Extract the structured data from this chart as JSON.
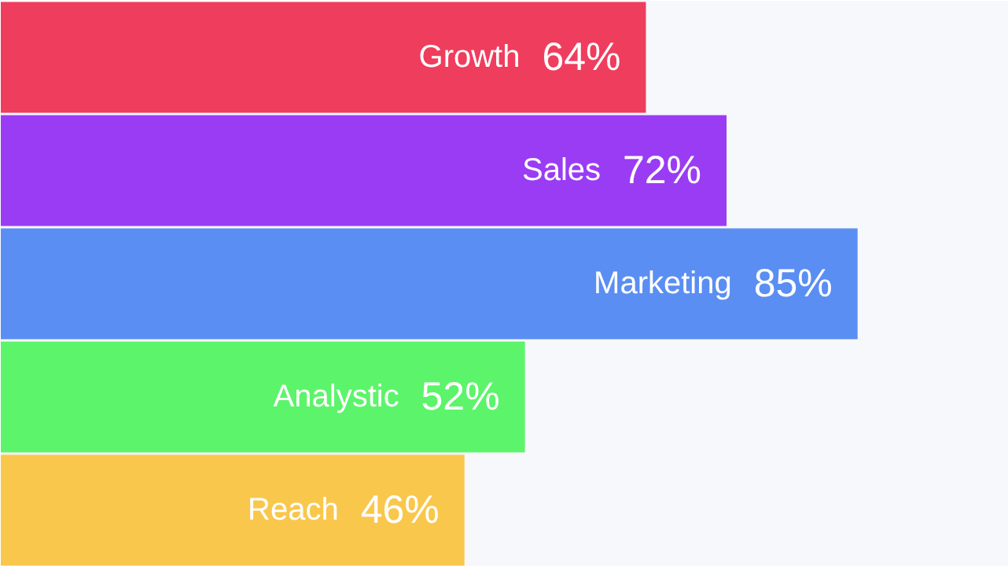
{
  "chart_data": {
    "type": "bar",
    "orientation": "horizontal",
    "categories": [
      "Growth",
      "Sales",
      "Marketing",
      "Analystic",
      "Reach"
    ],
    "values": [
      64,
      72,
      85,
      52,
      46
    ],
    "colors": [
      "#ef3d5e",
      "#9a3cf4",
      "#5a8ef2",
      "#5cf46a",
      "#f9c74c"
    ],
    "value_labels": [
      "64%",
      "72%",
      "85%",
      "52%",
      "46%"
    ],
    "xlim": [
      0,
      100
    ],
    "tick_labels": false
  }
}
